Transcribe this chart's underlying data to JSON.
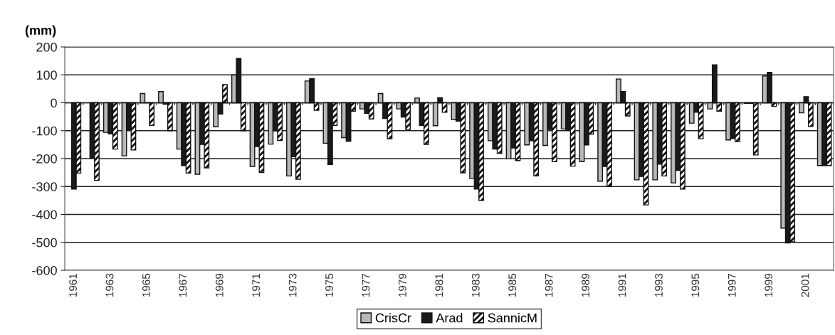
{
  "chart_data": {
    "type": "bar",
    "ylabel": "(mm)",
    "categories": [
      "1961",
      null,
      "1963",
      null,
      "1965",
      null,
      "1967",
      null,
      "1969",
      null,
      "1971",
      null,
      "1973",
      null,
      "1975",
      null,
      "1977",
      null,
      "1979",
      null,
      "1981",
      null,
      "1983",
      null,
      "1985",
      null,
      "1987",
      null,
      "1989",
      null,
      "1991",
      null,
      "1993",
      null,
      "1995",
      null,
      "1997",
      null,
      "1999",
      null,
      "2001",
      null
    ],
    "series": [
      {
        "name": "CrisCr",
        "color": "#b8b8b8",
        "values": [
          null,
          null,
          -106,
          -190,
          33,
          40,
          -166,
          -256,
          -86,
          100,
          -228,
          -148,
          -262,
          78,
          -145,
          -125,
          -22,
          33,
          -22,
          17,
          -82,
          -60,
          -271,
          -136,
          -201,
          -151,
          -153,
          -94,
          -211,
          -281,
          85,
          -276,
          -276,
          -287,
          -73,
          -22,
          -133,
          -2,
          96,
          -449,
          -36,
          -225
        ]
      },
      {
        "name": "Arad",
        "color": "#1a1a1a",
        "values": [
          -309,
          -198,
          -111,
          -97,
          0,
          -5,
          -225,
          -149,
          -40,
          159,
          -157,
          -100,
          -193,
          86,
          -221,
          -138,
          -38,
          -56,
          -51,
          -81,
          18,
          -66,
          -309,
          -166,
          -162,
          -136,
          -96,
          -97,
          -151,
          -228,
          40,
          -264,
          -220,
          -242,
          -34,
          136,
          -128,
          -2,
          109,
          -502,
          22,
          -225
        ]
      },
      {
        "name": "SannicM",
        "color": "#111111",
        "values": [
          -252,
          -278,
          -166,
          -169,
          -81,
          -100,
          -252,
          -233,
          65,
          -100,
          -250,
          -135,
          -274,
          -27,
          -81,
          -30,
          -58,
          -129,
          -96,
          -149,
          -34,
          -251,
          -350,
          -181,
          -207,
          -262,
          -211,
          -227,
          -113,
          -298,
          -47,
          -366,
          -262,
          -309,
          -129,
          -30,
          -139,
          -187,
          -13,
          -498,
          -85,
          -225
        ]
      }
    ],
    "ylim": [
      -600,
      200
    ],
    "yticks": [
      -600,
      -500,
      -400,
      -300,
      -200,
      -100,
      0,
      100,
      200
    ],
    "grid": "y",
    "legend": "bottom"
  }
}
